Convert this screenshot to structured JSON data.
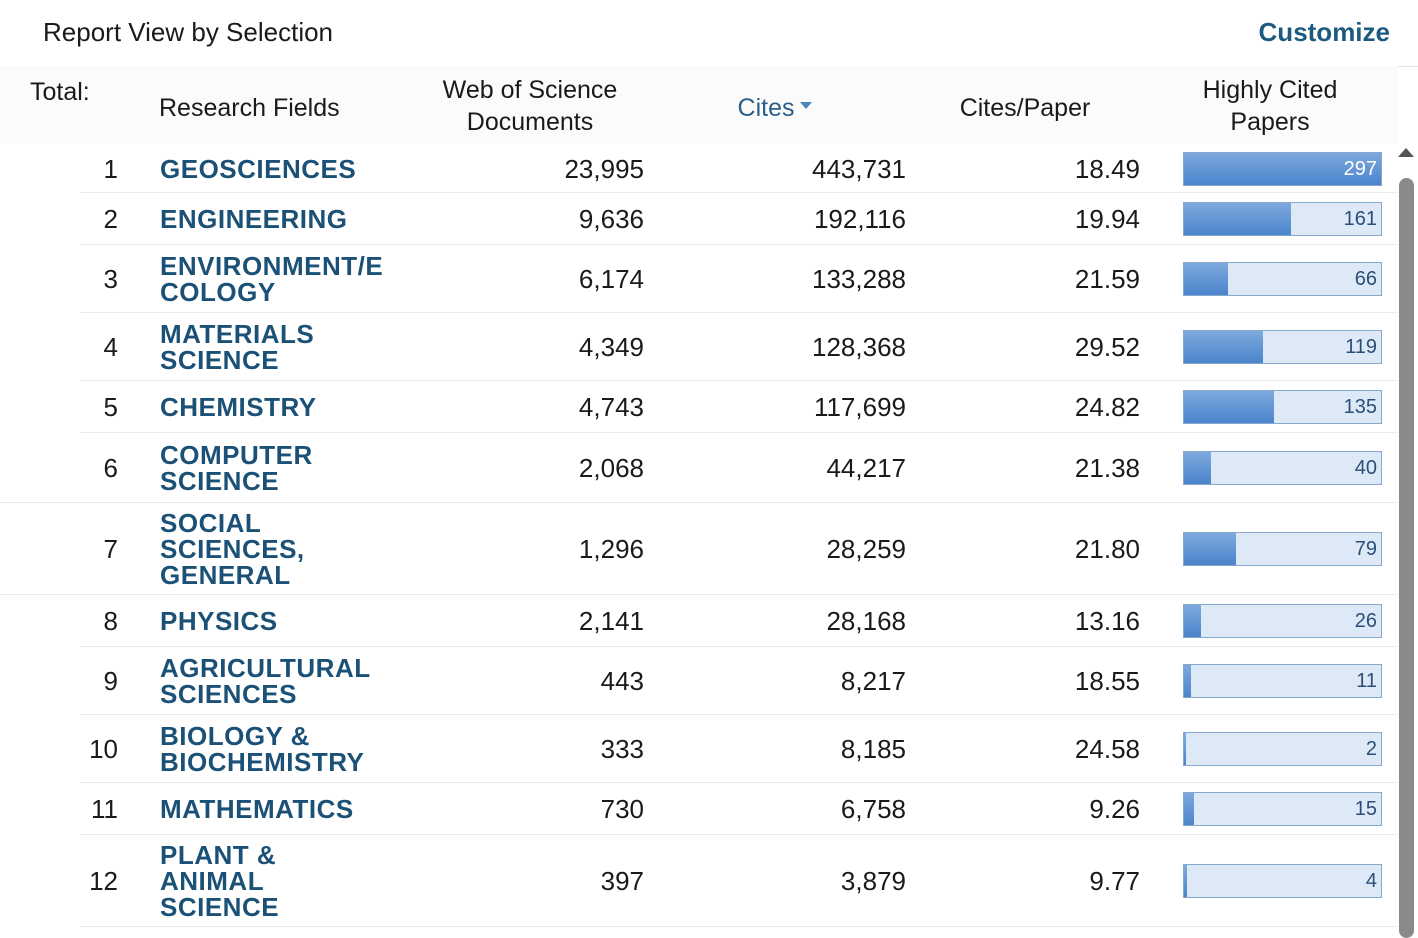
{
  "header": {
    "title": "Report View by Selection",
    "customize": "Customize"
  },
  "columns": {
    "total": "Total:",
    "fields": "Research Fields",
    "docs_line1": "Web of Science",
    "docs_line2": "Documents",
    "cites": "Cites",
    "cites_per_paper": "Cites/Paper",
    "hcp_line1": "Highly Cited",
    "hcp_line2": "Papers"
  },
  "rows": [
    {
      "rank": "1",
      "field": [
        "GEOSCIENCES"
      ],
      "docs": "23,995",
      "cites": "443,731",
      "cpp": "18.49",
      "hcp": "297",
      "hcp_fraction": 1.0
    },
    {
      "rank": "2",
      "field": [
        "ENGINEERING"
      ],
      "docs": "9,636",
      "cites": "192,116",
      "cpp": "19.94",
      "hcp": "161",
      "hcp_fraction": 0.542
    },
    {
      "rank": "3",
      "field": [
        "ENVIRONMENT/E",
        "COLOGY"
      ],
      "docs": "6,174",
      "cites": "133,288",
      "cpp": "21.59",
      "hcp": "66",
      "hcp_fraction": 0.222
    },
    {
      "rank": "4",
      "field": [
        "MATERIALS",
        "SCIENCE"
      ],
      "docs": "4,349",
      "cites": "128,368",
      "cpp": "29.52",
      "hcp": "119",
      "hcp_fraction": 0.401
    },
    {
      "rank": "5",
      "field": [
        "CHEMISTRY"
      ],
      "docs": "4,743",
      "cites": "117,699",
      "cpp": "24.82",
      "hcp": "135",
      "hcp_fraction": 0.455
    },
    {
      "rank": "6",
      "field": [
        "COMPUTER",
        "SCIENCE"
      ],
      "docs": "2,068",
      "cites": "44,217",
      "cpp": "21.38",
      "hcp": "40",
      "hcp_fraction": 0.135
    },
    {
      "rank": "7",
      "field": [
        "SOCIAL",
        "SCIENCES,",
        "GENERAL"
      ],
      "docs": "1,296",
      "cites": "28,259",
      "cpp": "21.80",
      "hcp": "79",
      "hcp_fraction": 0.266
    },
    {
      "rank": "8",
      "field": [
        "PHYSICS"
      ],
      "docs": "2,141",
      "cites": "28,168",
      "cpp": "13.16",
      "hcp": "26",
      "hcp_fraction": 0.088
    },
    {
      "rank": "9",
      "field": [
        "AGRICULTURAL",
        "SCIENCES"
      ],
      "docs": "443",
      "cites": "8,217",
      "cpp": "18.55",
      "hcp": "11",
      "hcp_fraction": 0.037
    },
    {
      "rank": "10",
      "field": [
        "BIOLOGY &",
        "BIOCHEMISTRY"
      ],
      "docs": "333",
      "cites": "8,185",
      "cpp": "24.58",
      "hcp": "2",
      "hcp_fraction": 0.007
    },
    {
      "rank": "11",
      "field": [
        "MATHEMATICS"
      ],
      "docs": "730",
      "cites": "6,758",
      "cpp": "9.26",
      "hcp": "15",
      "hcp_fraction": 0.051
    },
    {
      "rank": "12",
      "field": [
        "PLANT &",
        "ANIMAL",
        "SCIENCE"
      ],
      "docs": "397",
      "cites": "3,879",
      "cpp": "9.77",
      "hcp": "4",
      "hcp_fraction": 0.013
    }
  ]
}
